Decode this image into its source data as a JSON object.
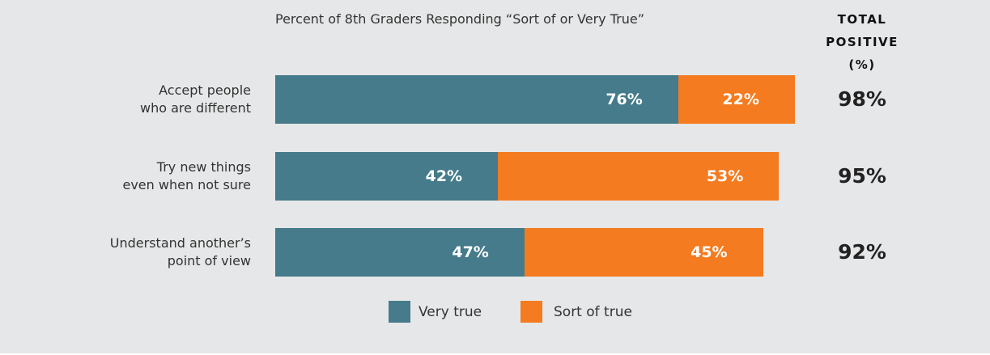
{
  "chart_data": {
    "type": "bar",
    "orientation": "horizontal",
    "stacked": true,
    "title": "Percent of 8th Graders Responding “Sort of or Very True”",
    "categories": [
      "Accept people who are different",
      "Try new things even when not sure",
      "Understand another’s point of view"
    ],
    "series": [
      {
        "name": "Very true",
        "color": "#457b8b",
        "values": [
          76,
          42,
          47
        ],
        "value_labels": [
          "76%",
          "42%",
          "47%"
        ]
      },
      {
        "name": "Sort of true",
        "color": "#f47b20",
        "values": [
          22,
          53,
          45
        ],
        "value_labels": [
          "22%",
          "53%",
          "45%"
        ]
      }
    ],
    "totals_header": "TOTAL POSITIVE (%)",
    "totals": [
      98,
      95,
      92
    ],
    "totals_labels": [
      "98%",
      "95%",
      "92%"
    ]
  }
}
